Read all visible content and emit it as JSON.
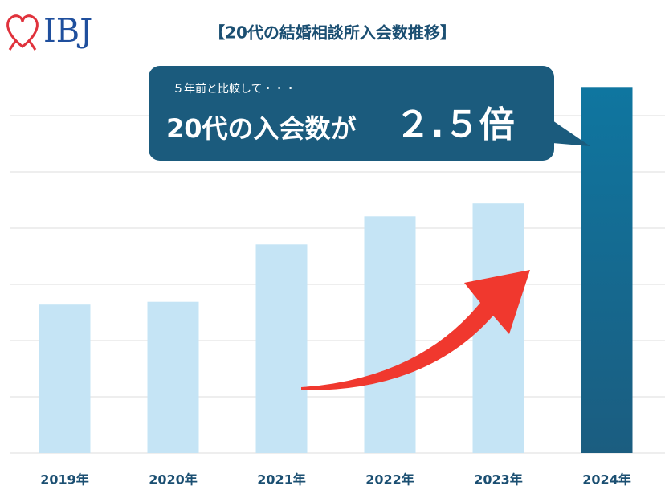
{
  "chart_data": {
    "type": "bar",
    "logo": "IBJ",
    "title": "【20代の結婚相談所入会数推移】",
    "callout_sub": "５年前と比較して・・・",
    "callout_main": "20代の入会数が",
    "callout_emphasis": "２.５倍",
    "categories": [
      "2019年",
      "2020年",
      "2021年",
      "2022年",
      "2023年",
      "2024年"
    ],
    "values": [
      2.64,
      2.69,
      3.71,
      4.21,
      4.44,
      6.51
    ],
    "colors": [
      "#c5e4f5",
      "#c5e4f5",
      "#c5e4f5",
      "#c5e4f5",
      "#c5e4f5",
      "#176e95"
    ],
    "ylim": [
      0,
      7
    ],
    "yticks": [
      0,
      1,
      2,
      3,
      4,
      5,
      6
    ],
    "grid": true
  }
}
